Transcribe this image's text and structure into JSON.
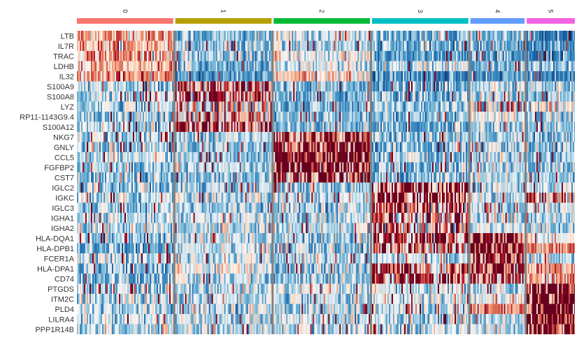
{
  "chart_data": {
    "type": "heatmap",
    "title": "",
    "xlabel": "",
    "ylabel": "",
    "colormap": "RdBu_r",
    "cluster_order": [
      "0",
      "1",
      "2",
      "3",
      "4",
      "5"
    ],
    "clusters": [
      {
        "id": "0",
        "color": "#F8766D",
        "cell_share": 0.32
      },
      {
        "id": "1",
        "color": "#B79F00",
        "cell_share": 0.32
      },
      {
        "id": "2",
        "color": "#00BA38",
        "cell_share": 0.32
      },
      {
        "id": "3",
        "color": "#00BFC4",
        "cell_share": 0.32
      },
      {
        "id": "4",
        "color": "#619CFF",
        "cell_share": 0.18
      },
      {
        "id": "5",
        "color": "#F564E3",
        "cell_share": 0.16
      }
    ],
    "genes": [
      "LTB",
      "IL7R",
      "TRAC",
      "LDHB",
      "IL32",
      "S100A9",
      "S100A8",
      "LYZ",
      "RP11-1143G9.4",
      "S100A12",
      "NKG7",
      "GNLY",
      "CCL5",
      "FGFBP2",
      "CST7",
      "IGLC2",
      "IGKC",
      "IGLC3",
      "IGHA1",
      "IGHA2",
      "HLA-DQA1",
      "HLA-DPB1",
      "FCER1A",
      "HLA-DPA1",
      "CD74",
      "PTGDS",
      "ITM2C",
      "PLD4",
      "LILRA4",
      "PPP1R14B"
    ],
    "marker_cluster": {
      "LTB": "0",
      "IL7R": "0",
      "TRAC": "0",
      "LDHB": "0",
      "IL32": "0",
      "S100A9": "1",
      "S100A8": "1",
      "LYZ": "1",
      "RP11-1143G9.4": "1",
      "S100A12": "1",
      "NKG7": "2",
      "GNLY": "2",
      "CCL5": "2",
      "FGFBP2": "2",
      "CST7": "2",
      "IGLC2": "3",
      "IGKC": "3",
      "IGLC3": "3",
      "IGHA1": "3",
      "IGHA2": "3",
      "HLA-DQA1": "4",
      "HLA-DPB1": "4",
      "FCER1A": "4",
      "HLA-DPA1": "4",
      "CD74": "4",
      "PTGDS": "5",
      "ITM2C": "5",
      "PLD4": "5",
      "LILRA4": "5",
      "PPP1R14B": "5"
    },
    "mean_scaled_expression": {
      "LTB": [
        0.9,
        -0.6,
        -0.1,
        -0.6,
        -0.7,
        -1.1
      ],
      "IL7R": [
        0.8,
        -0.5,
        -0.3,
        -0.7,
        -0.6,
        -1.0
      ],
      "TRAC": [
        1.0,
        -0.6,
        0.1,
        -0.8,
        -0.8,
        -1.0
      ],
      "LDHB": [
        0.6,
        -0.6,
        0.0,
        -0.3,
        -0.5,
        -0.6
      ],
      "IL32": [
        0.9,
        -0.8,
        0.5,
        -1.0,
        -0.9,
        -1.1
      ],
      "S100A9": [
        -0.3,
        1.9,
        -0.6,
        -0.7,
        0.0,
        -0.3
      ],
      "S100A8": [
        -0.3,
        1.8,
        -0.6,
        -0.6,
        -0.2,
        -0.5
      ],
      "LYZ": [
        -0.2,
        1.3,
        -0.5,
        -0.4,
        1.3,
        0.2
      ],
      "RP11-1143G9.4": [
        -0.3,
        1.3,
        -0.6,
        -0.6,
        0.1,
        -0.3
      ],
      "S100A12": [
        -0.3,
        1.9,
        -0.5,
        -0.7,
        -0.3,
        -0.4
      ],
      "NKG7": [
        -0.3,
        -0.3,
        2.3,
        -0.5,
        -0.3,
        -0.5
      ],
      "GNLY": [
        -0.3,
        -0.5,
        2.3,
        -0.5,
        -0.4,
        -0.5
      ],
      "CCL5": [
        -0.1,
        -0.4,
        2.6,
        -0.4,
        -0.3,
        -0.4
      ],
      "FGFBP2": [
        -0.4,
        -0.4,
        2.4,
        -0.5,
        -0.4,
        -0.4
      ],
      "CST7": [
        -0.4,
        -0.5,
        2.2,
        -0.5,
        -0.3,
        -0.5
      ],
      "IGLC2": [
        -0.3,
        -0.3,
        -0.3,
        2.0,
        -0.3,
        -0.2
      ],
      "IGKC": [
        -0.2,
        -0.2,
        -0.2,
        2.2,
        -0.2,
        1.6
      ],
      "IGLC3": [
        -0.3,
        -0.3,
        -0.3,
        1.8,
        -0.3,
        -0.2
      ],
      "IGHA1": [
        -0.3,
        -0.2,
        -0.3,
        1.5,
        -0.3,
        -0.2
      ],
      "IGHA2": [
        -0.2,
        -0.2,
        -0.2,
        1.3,
        -0.2,
        -0.2
      ],
      "HLA-DQA1": [
        -0.4,
        -0.2,
        -0.4,
        2.0,
        2.5,
        0.3
      ],
      "HLA-DPB1": [
        -0.6,
        0.0,
        -0.5,
        1.5,
        2.5,
        1.0
      ],
      "FCER1A": [
        -0.2,
        -0.2,
        -0.2,
        -0.2,
        2.3,
        -0.2
      ],
      "HLA-DPA1": [
        -0.6,
        0.1,
        -0.5,
        1.8,
        2.4,
        0.9
      ],
      "CD74": [
        -0.6,
        -0.2,
        -0.5,
        1.7,
        2.2,
        0.8
      ],
      "PTGDS": [
        -0.2,
        -0.2,
        -0.2,
        -0.2,
        -0.2,
        2.4
      ],
      "ITM2C": [
        -0.2,
        -0.2,
        -0.2,
        -0.1,
        0.2,
        2.6
      ],
      "PLD4": [
        -0.2,
        -0.2,
        -0.2,
        -0.2,
        1.0,
        2.6
      ],
      "LILRA4": [
        -0.2,
        -0.2,
        -0.2,
        -0.2,
        -0.2,
        2.7
      ],
      "PPP1R14B": [
        -0.2,
        -0.2,
        -0.2,
        -0.2,
        -0.1,
        2.6
      ]
    },
    "value_range": [
      -2.5,
      2.5
    ],
    "legend": "none",
    "grid": false
  }
}
